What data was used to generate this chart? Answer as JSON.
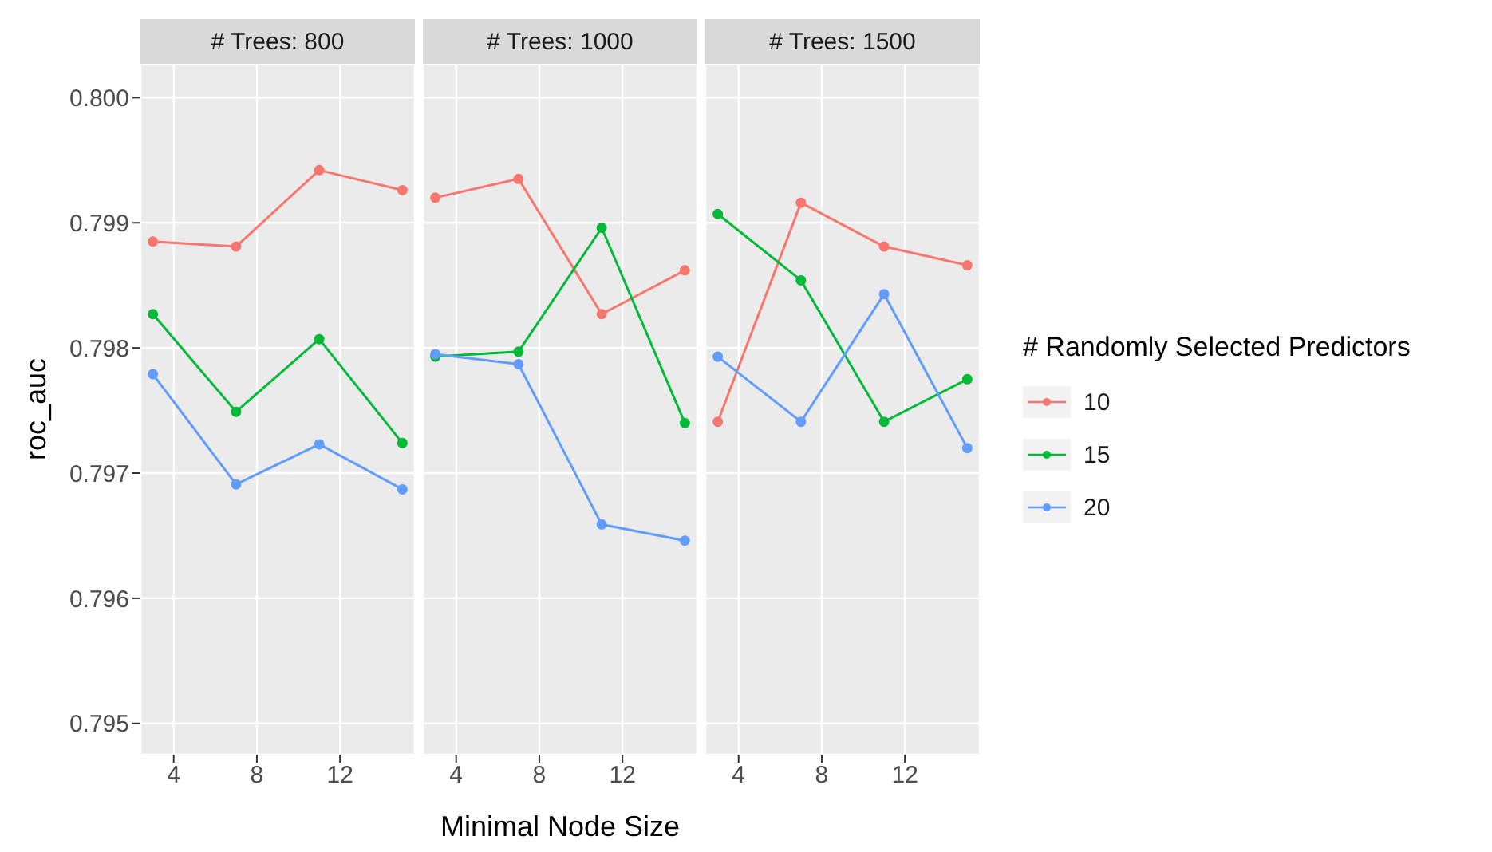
{
  "chart_data": [
    {
      "type": "line",
      "title": "# Trees: 800",
      "ylabel": "roc_auc",
      "x": [
        3,
        7,
        11,
        15
      ],
      "xlim": [
        2.4,
        15.6
      ],
      "xticks": [
        4,
        8,
        12
      ],
      "ylim": [
        0.79475,
        0.80027
      ],
      "yticks": [
        0.795,
        0.796,
        0.797,
        0.798,
        0.799,
        {
          "value": 0.8,
          "label": "0.800"
        }
      ],
      "grid": true,
      "marker": "circle",
      "line_style": "solid",
      "series": [
        {
          "color": "#f8766d",
          "values": [
            0.79885,
            0.79881,
            0.79942,
            0.79926
          ]
        },
        {
          "color": "#00ba38",
          "values": [
            0.79827,
            0.79749,
            0.79807,
            0.79724
          ]
        },
        {
          "color": "#619cff",
          "values": [
            0.79779,
            0.79691,
            0.79723,
            0.79687
          ]
        }
      ]
    },
    {
      "type": "line",
      "title": "# Trees: 1000",
      "xlabel": "Minimal Node Size",
      "x": [
        3,
        7,
        11,
        15
      ],
      "xlim": [
        2.4,
        15.6
      ],
      "xticks": [
        4,
        8,
        12
      ],
      "ylim": [
        0.79475,
        0.80027
      ],
      "yticks": [
        0.795,
        0.796,
        0.797,
        0.798,
        0.799,
        0.8
      ],
      "tick_labels": "x",
      "grid": true,
      "marker": "circle",
      "line_style": "solid",
      "series": [
        {
          "color": "#f8766d",
          "values": [
            0.7992,
            0.79935,
            0.79827,
            0.79862
          ]
        },
        {
          "color": "#00ba38",
          "values": [
            0.79793,
            0.79797,
            0.79896,
            0.7974
          ]
        },
        {
          "color": "#619cff",
          "values": [
            0.79795,
            0.79787,
            0.79659,
            0.79646
          ]
        }
      ]
    },
    {
      "type": "line",
      "title": "# Trees: 1500",
      "legend_title": "# Randomly Selected Predictors",
      "legend": "right",
      "x": [
        3,
        7,
        11,
        15
      ],
      "xlim": [
        2.4,
        15.6
      ],
      "xticks": [
        4,
        8,
        12
      ],
      "ylim": [
        0.79475,
        0.80027
      ],
      "yticks": [
        0.795,
        0.796,
        0.797,
        0.798,
        0.799,
        0.8
      ],
      "tick_labels": "x",
      "grid": true,
      "marker": "circle",
      "line_style": "solid",
      "series": [
        {
          "name": "10",
          "color": "#f8766d",
          "values": [
            0.79741,
            0.79916,
            0.79881,
            0.79866
          ]
        },
        {
          "name": "15",
          "color": "#00ba38",
          "values": [
            0.79907,
            0.79854,
            0.79741,
            0.79775
          ]
        },
        {
          "name": "20",
          "color": "#619cff",
          "values": [
            0.79793,
            0.79741,
            0.79843,
            0.7972
          ]
        }
      ]
    }
  ]
}
